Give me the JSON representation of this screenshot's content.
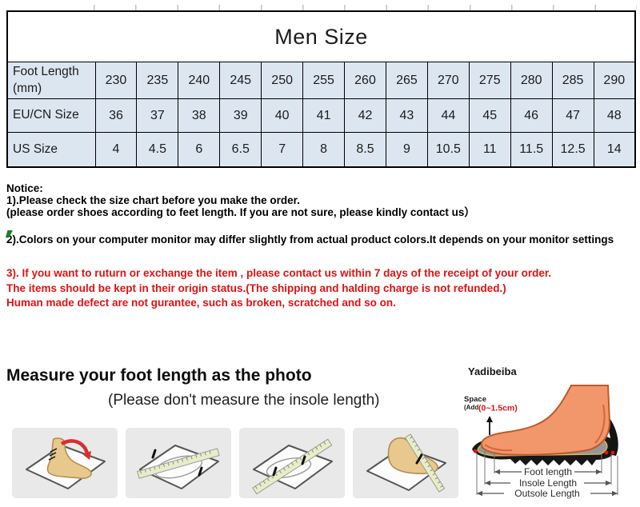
{
  "size_table": {
    "title": "Men Size",
    "rows": [
      {
        "label_lines": [
          "Foot Length",
          "(mm)"
        ],
        "values": [
          "230",
          "235",
          "240",
          "245",
          "250",
          "255",
          "260",
          "265",
          "270",
          "275",
          "280",
          "285",
          "290"
        ]
      },
      {
        "label_lines": [
          "EU/CN Size"
        ],
        "values": [
          "36",
          "37",
          "38",
          "39",
          "40",
          "41",
          "42",
          "43",
          "44",
          "45",
          "46",
          "47",
          "48"
        ]
      },
      {
        "label_lines": [
          "US Size"
        ],
        "values": [
          "4",
          "4.5",
          "6",
          "6.5",
          "7",
          "8",
          "8.5",
          "9",
          "10.5",
          "11",
          "11.5",
          "12.5",
          "14"
        ]
      }
    ]
  },
  "notice": {
    "heading": "Notice:",
    "point1": "1).Please check the size chart before you make the order.",
    "point1_sub": "(please order shoes according to feet length. If you are not sure, please kindly contact us）",
    "point2": "2).Colors on your computer monitor may differ slightly from actual product colors.It depends on your monitor settings",
    "point3_lines": [
      "3). If you want to ruturn or exchange the item , please contact us within 7 days of the receipt of your order.",
      "The items should be kept in their origin status.(The shipping and halding charge is not refunded.)",
      "Human made defect are not gurantee, such as broken, scratched and so on."
    ]
  },
  "measure": {
    "heading": "Measure your foot length as the photo",
    "subheading": "(Please don't measure the insole length)",
    "brand": "Yadibeiba"
  },
  "foot_diagram": {
    "space_label": "Space",
    "space_prefix": "(Add",
    "space_value": "(0~1.5cm)",
    "foot_length_label": "Foot length",
    "insole_length_label": "Insole Length",
    "outsole_length_label": "Outsole Length"
  },
  "colors": {
    "table_cell_bg": "#dce6f1",
    "warning_red": "#e01212",
    "flag_green": "#1e7d1e"
  }
}
